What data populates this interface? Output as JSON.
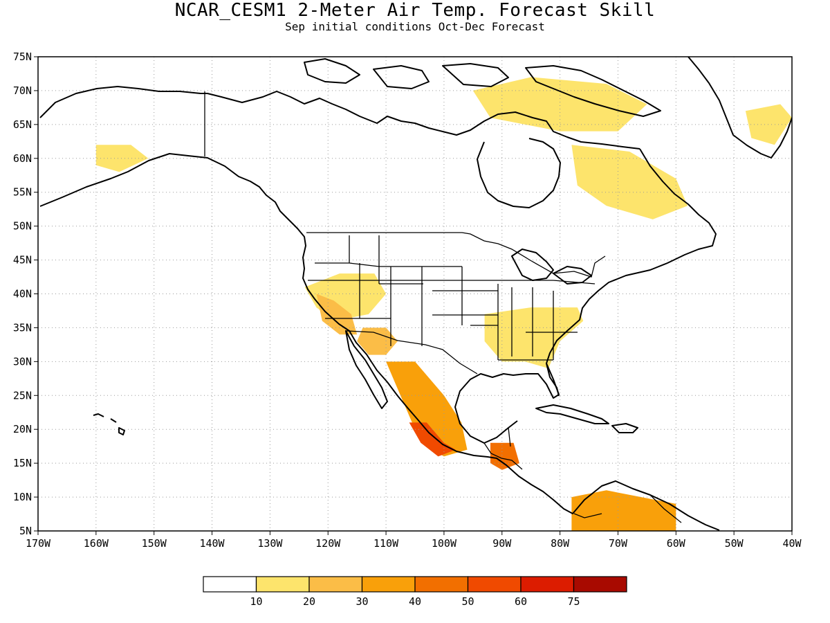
{
  "title": "NCAR_CESM1 2-Meter Air Temp. Forecast Skill",
  "subtitle": "Sep initial conditions  Oct-Dec Forecast",
  "map": {
    "lon_range": [
      -170,
      -40
    ],
    "lat_range": [
      5,
      75
    ],
    "lat_labels": [
      "75N",
      "70N",
      "65N",
      "60N",
      "55N",
      "50N",
      "45N",
      "40N",
      "35N",
      "30N",
      "25N",
      "20N",
      "15N",
      "10N",
      "5N"
    ],
    "lon_labels": [
      "170W",
      "160W",
      "150W",
      "140W",
      "130W",
      "120W",
      "110W",
      "100W",
      "90W",
      "80W",
      "70W",
      "60W",
      "50W",
      "40W"
    ],
    "gridlines": "dotted",
    "skill_regions": [
      {
        "name": "western-us",
        "level": 15,
        "lon": -117,
        "lat": 38
      },
      {
        "name": "california",
        "level": 25,
        "lon": -120,
        "lat": 37
      },
      {
        "name": "arizona",
        "level": 25,
        "lon": -111,
        "lat": 33
      },
      {
        "name": "southeast-us",
        "level": 15,
        "lon": -85,
        "lat": 34
      },
      {
        "name": "west-mexico",
        "level": 35,
        "lon": -103,
        "lat": 20
      },
      {
        "name": "southwest-mexico",
        "level": 55,
        "lon": -104,
        "lat": 19
      },
      {
        "name": "guatemala",
        "level": 45,
        "lon": -90,
        "lat": 15
      },
      {
        "name": "venezuela",
        "level": 35,
        "lon": -65,
        "lat": 8
      },
      {
        "name": "northern-canada",
        "level": 15,
        "lon": -80,
        "lat": 66
      },
      {
        "name": "labrador",
        "level": 15,
        "lon": -62,
        "lat": 54
      },
      {
        "name": "greenland",
        "level": 15,
        "lon": -43,
        "lat": 64
      },
      {
        "name": "alaska",
        "level": 15,
        "lon": -155,
        "lat": 61
      }
    ]
  },
  "colorbar": {
    "bins": [
      {
        "color": "#ffffff",
        "label": ""
      },
      {
        "color": "#fde46c",
        "label": "10"
      },
      {
        "color": "#fbbd47",
        "label": "20"
      },
      {
        "color": "#f9a00a",
        "label": "30"
      },
      {
        "color": "#f26f00",
        "label": "40"
      },
      {
        "color": "#f04a00",
        "label": "50"
      },
      {
        "color": "#dc1c00",
        "label": "60"
      },
      {
        "color": "#a80a00",
        "label": "75"
      }
    ]
  }
}
